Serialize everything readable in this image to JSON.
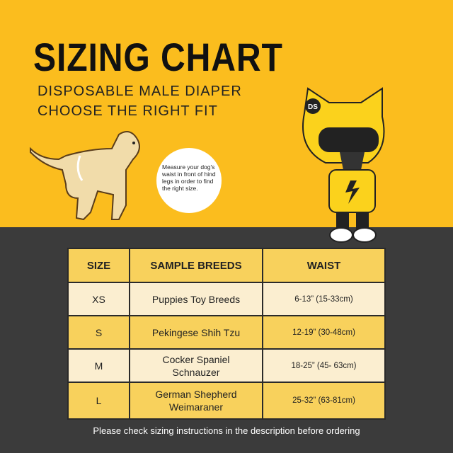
{
  "title": "SIZING CHART",
  "subtitle_line1": "DISPOSABLE MALE DIAPER",
  "subtitle_line2": "CHOOSE THE RIGHT FIT",
  "measure_note": "Measure your dog's waist in front of hind legs in order to find the right size.",
  "mascot_badge": "DS",
  "colors": {
    "yellow": "#fbbd1e",
    "dark": "#3b3b3b",
    "header_cell": "#f8d15c",
    "light_cell": "#fbeed0"
  },
  "table": {
    "headers": [
      "SIZE",
      "SAMPLE BREEDS",
      "WAIST"
    ],
    "rows": [
      {
        "size": "XS",
        "breeds": [
          "Puppies Toy Breeds"
        ],
        "waist": "6-13” (15-33cm)"
      },
      {
        "size": "S",
        "breeds": [
          "Pekingese Shih Tzu"
        ],
        "waist": "12-19” (30-48cm)"
      },
      {
        "size": "M",
        "breeds": [
          "Cocker Spaniel",
          "Schnauzer"
        ],
        "waist": "18-25” (45- 63cm)"
      },
      {
        "size": "L",
        "breeds": [
          "German Shepherd",
          "Weimaraner"
        ],
        "waist": "25-32” (63-81cm)"
      }
    ]
  },
  "footer": "Please check sizing instructions in the description before ordering"
}
